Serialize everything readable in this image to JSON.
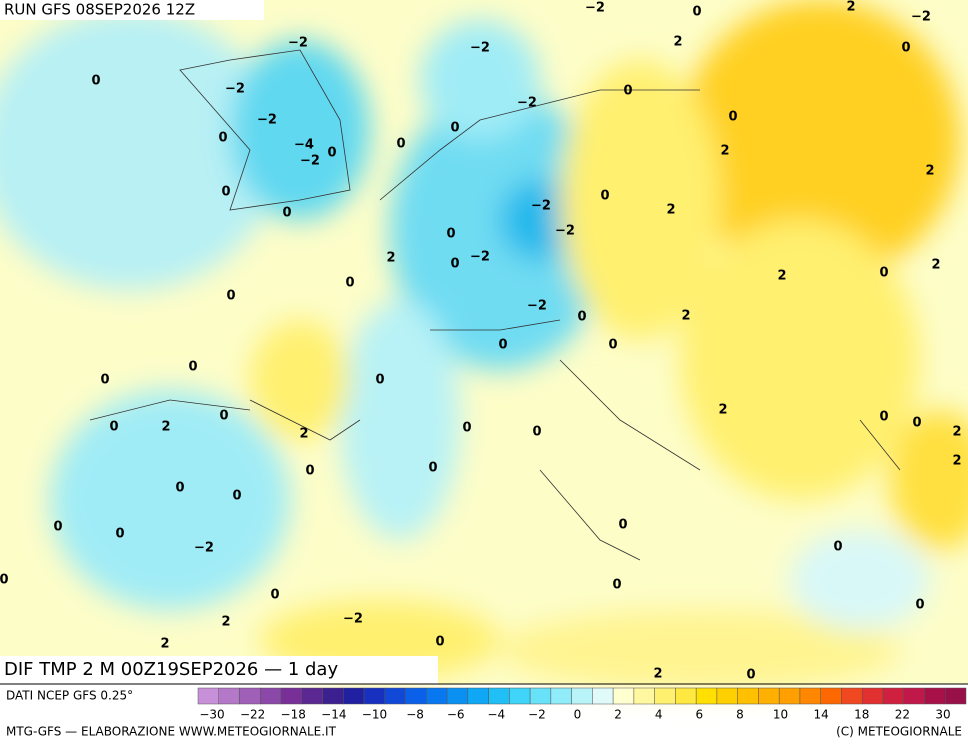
{
  "header": {
    "title": "RUN GFS 08SEP2026 12Z"
  },
  "map": {
    "labels": [
      "0",
      "−2",
      "−2",
      "0",
      "−2",
      "−4",
      "−2",
      "0",
      "0",
      "0",
      "0",
      "0",
      "−2",
      "−2",
      "−2",
      "0",
      "2",
      "−2",
      "0",
      "2",
      "0",
      "0",
      "2",
      "2",
      "2",
      "0",
      "−2",
      "−2",
      "0",
      "−2",
      "0",
      "2",
      "0",
      "0",
      "2",
      "0",
      "2",
      "2",
      "0",
      "−2",
      "0",
      "0",
      "0",
      "0",
      "0",
      "0",
      "0",
      "2",
      "2",
      "0",
      "0",
      "2",
      "0",
      "0",
      "2",
      "2",
      "0",
      "0",
      "0",
      "0",
      "0",
      "0",
      "−2",
      "0",
      "0",
      "0",
      "0",
      "0",
      "0",
      "2",
      "−2",
      "2",
      "0",
      "2",
      "0"
    ]
  },
  "footer": {
    "title": "DIF TMP 2 M 00Z19SEP2026 — 1 day",
    "source": "DATI NCEP GFS 0.25°",
    "credit": "MTG-GFS — ELABORAZIONE WWW.METEOGIORNALE.IT",
    "copyright": "(C) METEOGIORNALE"
  },
  "legend": {
    "labels": [
      "−30",
      "−22",
      "−18",
      "−14",
      "−10",
      "−8",
      "−6",
      "−4",
      "−2",
      "0",
      "2",
      "4",
      "6",
      "8",
      "10",
      "14",
      "18",
      "22",
      "30"
    ],
    "colors": [
      "#c890d8",
      "#b478c8",
      "#a060b8",
      "#8c48a8",
      "#783098",
      "#5a2890",
      "#3c2090",
      "#2020a0",
      "#1830c0",
      "#1048d8",
      "#0a60e8",
      "#0878f0",
      "#0a90f0",
      "#10a8f4",
      "#20c0f6",
      "#40d4f8",
      "#68e2f8",
      "#90ecf8",
      "#b8f4f8",
      "#e0fafa",
      "#ffffd0",
      "#fff8a0",
      "#fff070",
      "#ffe840",
      "#ffe000",
      "#ffd000",
      "#ffc000",
      "#ffb000",
      "#ffa000",
      "#ff8800",
      "#ff6800",
      "#f04820",
      "#e03030",
      "#d02040",
      "#c01848",
      "#a81048",
      "#981048"
    ]
  }
}
